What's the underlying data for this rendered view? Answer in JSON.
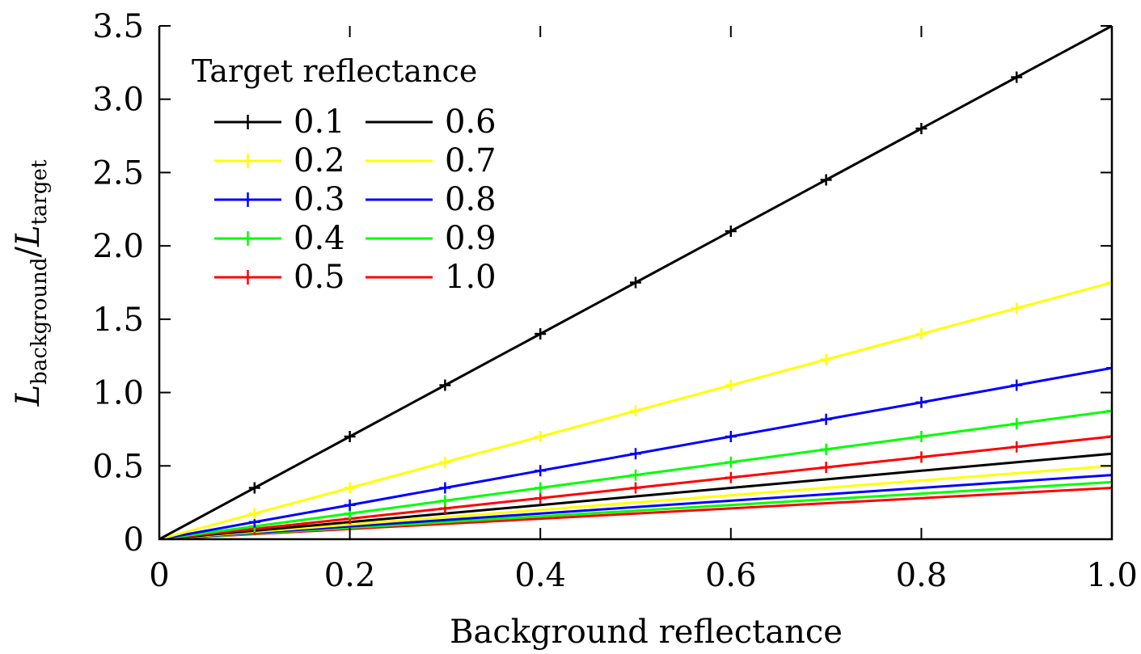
{
  "chart_data": {
    "type": "line",
    "title": "",
    "xlabel": "Background reflectance",
    "ylabel_main": "L",
    "ylabel_sub1": "background",
    "ylabel_sep": "/",
    "ylabel_sub2": "target",
    "xlim": [
      0,
      1.0
    ],
    "ylim": [
      0,
      3.5
    ],
    "x_ticks": [
      0,
      0.2,
      0.4,
      0.6,
      0.8,
      1.0
    ],
    "x_tick_labels": [
      "0",
      "0.2",
      "0.4",
      "0.6",
      "0.8",
      "1.0"
    ],
    "y_ticks": [
      0,
      0.5,
      1.0,
      1.5,
      2.0,
      2.5,
      3.0,
      3.5
    ],
    "y_tick_labels": [
      "0",
      "0.5",
      "1.0",
      "1.5",
      "2.0",
      "2.5",
      "3.0",
      "3.5"
    ],
    "grid": false,
    "legend": {
      "title": "Target reflectance",
      "placement": "top-left"
    },
    "x": [
      0,
      0.1,
      0.2,
      0.3,
      0.4,
      0.5,
      0.6,
      0.7,
      0.8,
      0.9,
      1.0
    ],
    "series": [
      {
        "name": "0.1",
        "color": "#000000",
        "markers": true,
        "values": [
          0,
          0.35,
          0.7,
          1.05,
          1.4,
          1.75,
          2.1,
          2.45,
          2.8,
          3.15,
          3.5
        ]
      },
      {
        "name": "0.2",
        "color": "#ffff00",
        "markers": true,
        "values": [
          0,
          0.175,
          0.35,
          0.525,
          0.7,
          0.875,
          1.05,
          1.225,
          1.4,
          1.575,
          1.75
        ]
      },
      {
        "name": "0.3",
        "color": "#0000ff",
        "markers": true,
        "values": [
          0,
          0.117,
          0.233,
          0.35,
          0.467,
          0.583,
          0.7,
          0.817,
          0.933,
          1.05,
          1.167
        ]
      },
      {
        "name": "0.4",
        "color": "#00ff00",
        "markers": true,
        "values": [
          0,
          0.0875,
          0.175,
          0.2625,
          0.35,
          0.4375,
          0.525,
          0.6125,
          0.7,
          0.7875,
          0.875
        ]
      },
      {
        "name": "0.5",
        "color": "#ff0000",
        "markers": true,
        "values": [
          0,
          0.07,
          0.14,
          0.21,
          0.28,
          0.35,
          0.42,
          0.49,
          0.56,
          0.63,
          0.7
        ]
      },
      {
        "name": "0.6",
        "color": "#000000",
        "markers": false,
        "values": [
          0,
          0.058,
          0.117,
          0.175,
          0.233,
          0.292,
          0.35,
          0.408,
          0.467,
          0.525,
          0.583
        ]
      },
      {
        "name": "0.7",
        "color": "#ffff00",
        "markers": false,
        "values": [
          0,
          0.05,
          0.1,
          0.15,
          0.2,
          0.25,
          0.3,
          0.35,
          0.4,
          0.45,
          0.5
        ]
      },
      {
        "name": "0.8",
        "color": "#0000ff",
        "markers": false,
        "values": [
          0,
          0.044,
          0.0875,
          0.131,
          0.175,
          0.219,
          0.2625,
          0.306,
          0.35,
          0.394,
          0.4375
        ]
      },
      {
        "name": "0.9",
        "color": "#00ff00",
        "markers": false,
        "values": [
          0,
          0.039,
          0.078,
          0.117,
          0.156,
          0.194,
          0.233,
          0.272,
          0.311,
          0.35,
          0.389
        ]
      },
      {
        "name": "1.0",
        "color": "#ff0000",
        "markers": false,
        "values": [
          0,
          0.035,
          0.07,
          0.105,
          0.14,
          0.175,
          0.21,
          0.245,
          0.28,
          0.315,
          0.35
        ]
      }
    ]
  }
}
